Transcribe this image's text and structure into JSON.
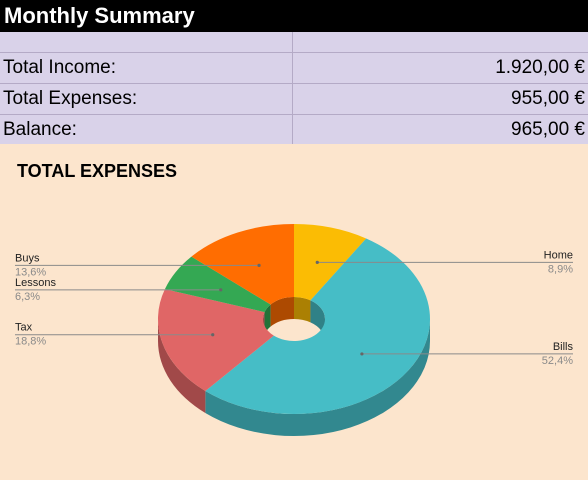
{
  "header": {
    "title": "Monthly Summary"
  },
  "summary": {
    "rows": [
      {
        "label": "Total Income:",
        "value": "1.920,00 €"
      },
      {
        "label": "Total Expenses:",
        "value": "955,00 €"
      },
      {
        "label": "Balance:",
        "value": "965,00 €"
      }
    ]
  },
  "chart_data": {
    "type": "pie",
    "title": "TOTAL EXPENSES",
    "donut": true,
    "three_d": true,
    "slices": [
      {
        "label": "Home",
        "pct_label": "8,9%",
        "value": 8.9,
        "color": "#fbbc04"
      },
      {
        "label": "Bills",
        "pct_label": "52,4%",
        "value": 52.4,
        "color": "#46bdc6"
      },
      {
        "label": "Tax",
        "pct_label": "18,8%",
        "value": 18.8,
        "color": "#e06666"
      },
      {
        "label": "Lessons",
        "pct_label": "6,3%",
        "value": 6.3,
        "color": "#34a853"
      },
      {
        "label": "Buys",
        "pct_label": "13,6%",
        "value": 13.6,
        "color": "#ff6d01"
      }
    ]
  }
}
